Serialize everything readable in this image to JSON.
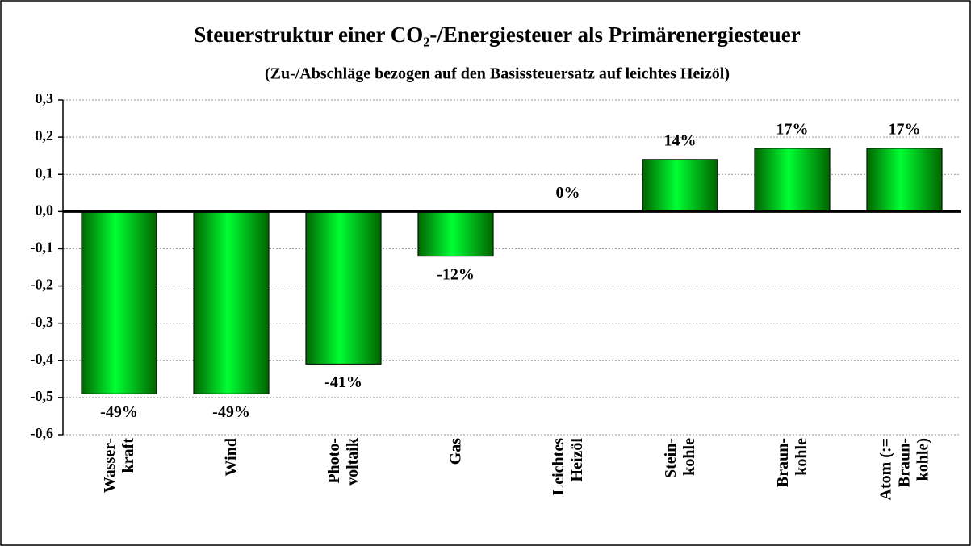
{
  "chart_data": {
    "type": "bar",
    "title": "Steuerstruktur einer CO₂-/Energiesteuer als Primärenergiesteuer",
    "subtitle": "(Zu-/Abschläge bezogen auf den Basissteuersatz auf leichtes Heizöl)",
    "categories": [
      "Wasser-\nkraft",
      "Wind",
      "Photo-\nvoltaik",
      "Gas",
      "Leichtes\nHeizöl",
      "Stein-\nkohle",
      "Braun-\nkohle",
      "Atom (:=\nBraun-\nkohle)"
    ],
    "values": [
      -0.49,
      -0.49,
      -0.41,
      -0.12,
      0,
      0.14,
      0.17,
      0.17
    ],
    "value_labels": [
      "-49%",
      "-49%",
      "-41%",
      "-12%",
      "0%",
      "14%",
      "17%",
      "17%"
    ],
    "color": "#00ee00",
    "ylim": [
      -0.6,
      0.3
    ],
    "yticks": [
      {
        "value": 0.3,
        "label": "0,3"
      },
      {
        "value": 0.2,
        "label": "0,2"
      },
      {
        "value": 0.1,
        "label": "0,1"
      },
      {
        "value": 0,
        "label": "0,0"
      },
      {
        "value": -0.1,
        "label": "-0,1"
      },
      {
        "value": -0.2,
        "label": "-0,2"
      },
      {
        "value": -0.3,
        "label": "-0,3"
      },
      {
        "value": -0.4,
        "label": "-0,4"
      },
      {
        "value": -0.5,
        "label": "-0,5"
      },
      {
        "value": -0.6,
        "label": "-0,6"
      }
    ],
    "grid": true
  }
}
